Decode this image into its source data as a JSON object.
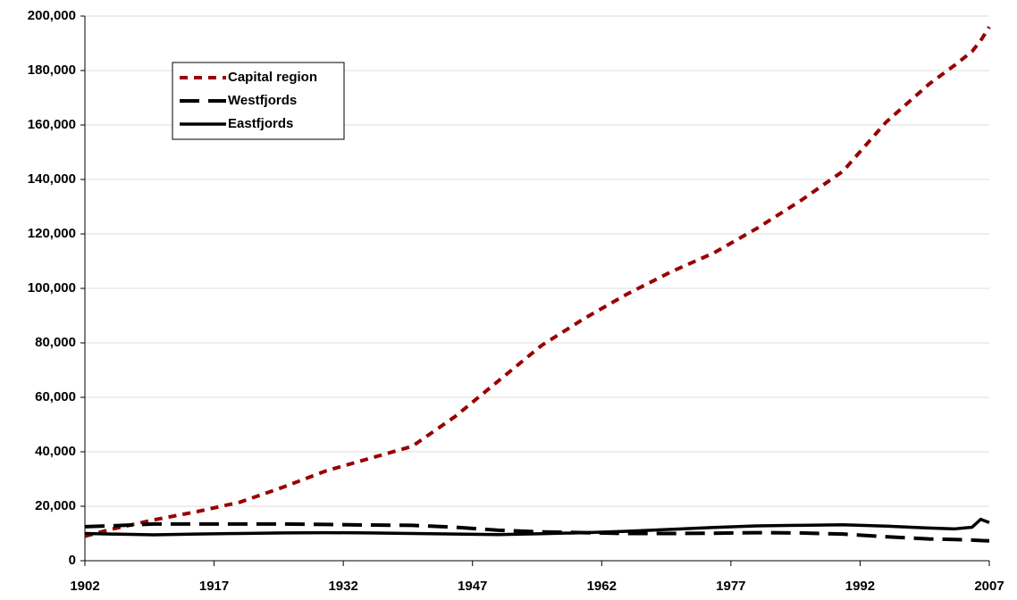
{
  "chart_data": {
    "type": "line",
    "x": [
      1902,
      1905,
      1910,
      1915,
      1920,
      1925,
      1930,
      1935,
      1940,
      1945,
      1950,
      1955,
      1960,
      1965,
      1970,
      1975,
      1980,
      1985,
      1990,
      1995,
      2000,
      2003,
      2005,
      2006,
      2007
    ],
    "series": [
      {
        "name": "Capital region",
        "color": "#990000",
        "line_style": "short-dash",
        "values": [
          9000,
          11500,
          15000,
          18000,
          21500,
          27000,
          33000,
          37500,
          42000,
          53000,
          66000,
          79000,
          89000,
          98000,
          106000,
          113000,
          122000,
          132000,
          143000,
          161000,
          175000,
          182000,
          187000,
          191000,
          196000
        ]
      },
      {
        "name": "Westfjords",
        "color": "#000000",
        "line_style": "long-dash",
        "values": [
          12500,
          12800,
          13500,
          13500,
          13500,
          13500,
          13300,
          13100,
          13000,
          12300,
          11200,
          10600,
          10300,
          10000,
          10000,
          10100,
          10300,
          10200,
          9800,
          8800,
          8000,
          7800,
          7600,
          7400,
          7300
        ]
      },
      {
        "name": "Eastfjords",
        "color": "#000000",
        "line_style": "solid",
        "values": [
          10000,
          9800,
          9500,
          9800,
          10000,
          10200,
          10300,
          10200,
          10000,
          9800,
          9600,
          9900,
          10300,
          10800,
          11500,
          12200,
          12800,
          13000,
          13200,
          12700,
          12000,
          11700,
          12300,
          15200,
          14000
        ]
      }
    ],
    "xlim": [
      1902,
      2007
    ],
    "xticks": [
      1902,
      1917,
      1932,
      1947,
      1962,
      1977,
      1992,
      2007
    ],
    "ylim": [
      0,
      200000
    ],
    "yticks": [
      {
        "value": 0,
        "label": "0"
      },
      {
        "value": 20000,
        "label": "20,000"
      },
      {
        "value": 40000,
        "label": "40,000"
      },
      {
        "value": 60000,
        "label": "60,000"
      },
      {
        "value": 80000,
        "label": "80,000"
      },
      {
        "value": 100000,
        "label": "100,000"
      },
      {
        "value": 120000,
        "label": "120,000"
      },
      {
        "value": 140000,
        "label": "140,000"
      },
      {
        "value": 160000,
        "label": "160,000"
      },
      {
        "value": 180000,
        "label": "180,000"
      },
      {
        "value": 200000,
        "label": "200,000"
      }
    ],
    "grid": true,
    "legend": "upper-left"
  }
}
